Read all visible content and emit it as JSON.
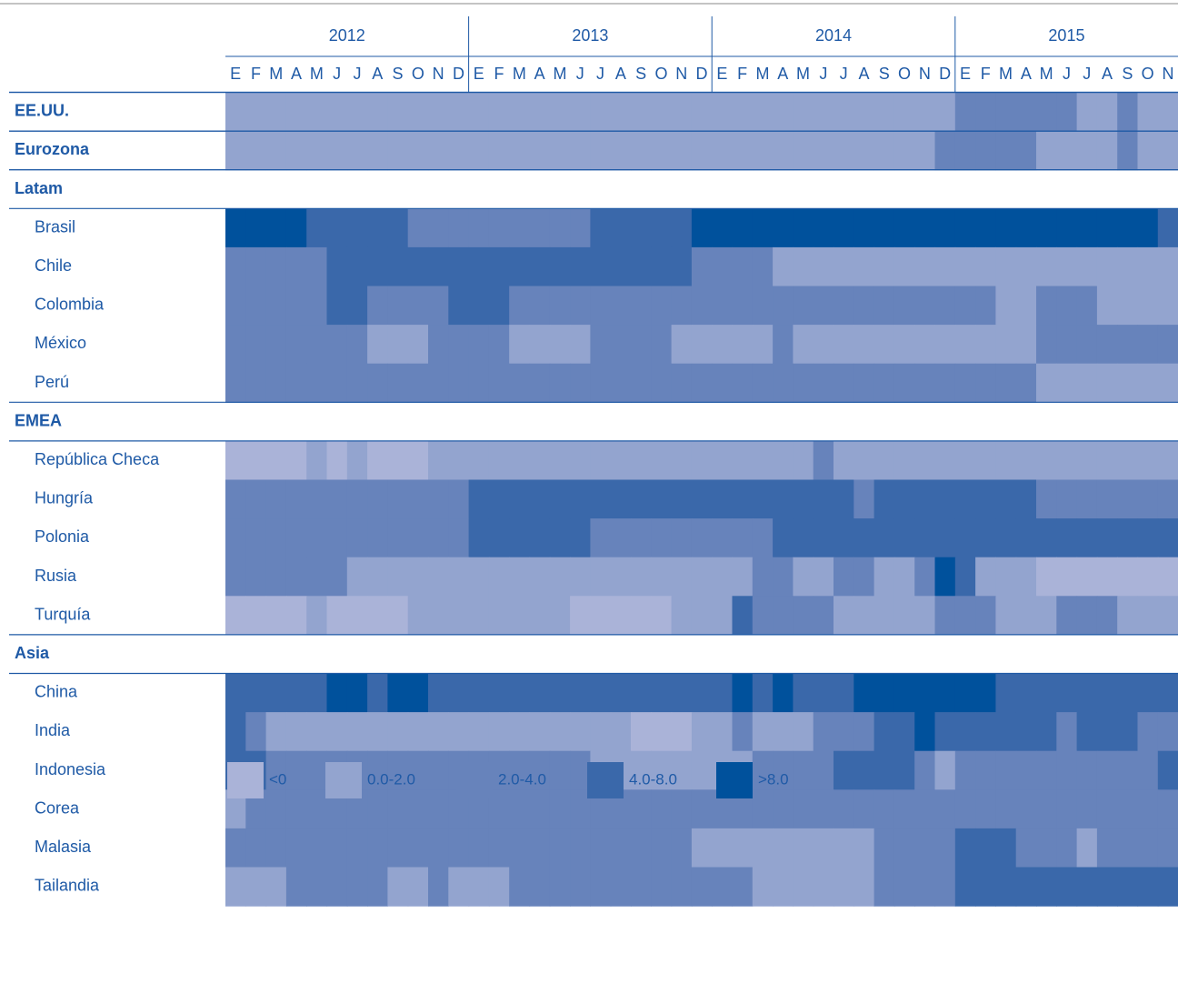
{
  "chart_data": {
    "type": "heatmap",
    "years": [
      "2012",
      "2013",
      "2014",
      "2015"
    ],
    "months": [
      "E",
      "F",
      "M",
      "A",
      "M",
      "J",
      "J",
      "A",
      "S",
      "O",
      "N",
      "D",
      "E",
      "F",
      "M",
      "A",
      "M",
      "J",
      "J",
      "A",
      "S",
      "O",
      "N",
      "D",
      "E",
      "F",
      "M",
      "A",
      "M",
      "J",
      "J",
      "A",
      "S",
      "O",
      "N",
      "D",
      "E",
      "F",
      "M",
      "A",
      "M",
      "J",
      "J",
      "A",
      "S",
      "O",
      "N"
    ],
    "legend": [
      {
        "label": "<0",
        "color": "#aab3d8"
      },
      {
        "label": "0.0-2.0",
        "color": "#93a4cf"
      },
      {
        "label": "2.0-4.0",
        "color": "#6783bb"
      },
      {
        "label": "4.0-8.0",
        "color": "#3a68aa"
      },
      {
        "label": ">8.0",
        "color": "#00519c"
      }
    ],
    "rows": [
      {
        "label": "EE.UU.",
        "bold": true,
        "values": [
          1,
          1,
          1,
          1,
          1,
          1,
          1,
          1,
          1,
          1,
          1,
          1,
          1,
          1,
          1,
          1,
          1,
          1,
          1,
          1,
          1,
          1,
          1,
          1,
          1,
          1,
          1,
          1,
          1,
          1,
          1,
          1,
          1,
          1,
          1,
          1,
          2,
          2,
          2,
          2,
          2,
          2,
          1,
          1,
          2,
          1,
          1
        ]
      },
      {
        "label": "Eurozona",
        "bold": true,
        "values": [
          1,
          1,
          1,
          1,
          1,
          1,
          1,
          1,
          1,
          1,
          1,
          1,
          1,
          1,
          1,
          1,
          1,
          1,
          1,
          1,
          1,
          1,
          1,
          1,
          1,
          1,
          1,
          1,
          1,
          1,
          1,
          1,
          1,
          1,
          1,
          2,
          2,
          2,
          2,
          2,
          1,
          1,
          1,
          1,
          2,
          1,
          1
        ]
      },
      {
        "label": "Latam",
        "bold": true
      },
      {
        "label": "Brasil",
        "values": [
          4,
          4,
          4,
          4,
          3,
          3,
          3,
          3,
          3,
          2,
          2,
          2,
          2,
          2,
          2,
          2,
          2,
          2,
          3,
          3,
          3,
          3,
          3,
          4,
          4,
          4,
          4,
          4,
          4,
          4,
          4,
          4,
          4,
          4,
          4,
          4,
          4,
          4,
          4,
          4,
          4,
          4,
          4,
          4,
          4,
          4,
          3
        ]
      },
      {
        "label": "Chile",
        "values": [
          2,
          2,
          2,
          2,
          2,
          3,
          3,
          3,
          3,
          3,
          3,
          3,
          3,
          3,
          3,
          3,
          3,
          3,
          3,
          3,
          3,
          3,
          3,
          2,
          2,
          2,
          2,
          1,
          1,
          1,
          1,
          1,
          1,
          1,
          1,
          1,
          1,
          1,
          1,
          1,
          1,
          1,
          1,
          1,
          1,
          1,
          1
        ]
      },
      {
        "label": "Colombia",
        "values": [
          2,
          2,
          2,
          2,
          2,
          3,
          3,
          2,
          2,
          2,
          2,
          3,
          3,
          3,
          2,
          2,
          2,
          2,
          2,
          2,
          2,
          2,
          2,
          2,
          2,
          2,
          2,
          2,
          2,
          2,
          2,
          2,
          2,
          2,
          2,
          2,
          2,
          2,
          1,
          1,
          2,
          2,
          2,
          1,
          1,
          1,
          1
        ]
      },
      {
        "label": "México",
        "values": [
          2,
          2,
          2,
          2,
          2,
          2,
          2,
          1,
          1,
          1,
          2,
          2,
          2,
          2,
          1,
          1,
          1,
          1,
          2,
          2,
          2,
          2,
          1,
          1,
          1,
          1,
          1,
          2,
          1,
          1,
          1,
          1,
          1,
          1,
          1,
          1,
          1,
          1,
          1,
          1,
          2,
          2,
          2,
          2,
          2,
          2,
          2
        ]
      },
      {
        "label": "Perú",
        "values": [
          2,
          2,
          2,
          2,
          2,
          2,
          2,
          2,
          2,
          2,
          2,
          2,
          2,
          2,
          2,
          2,
          2,
          2,
          2,
          2,
          2,
          2,
          2,
          2,
          2,
          2,
          2,
          2,
          2,
          2,
          2,
          2,
          2,
          2,
          2,
          2,
          2,
          2,
          2,
          2,
          1,
          1,
          1,
          1,
          1,
          1,
          1
        ]
      },
      {
        "label": "EMEA",
        "bold": true
      },
      {
        "label": "República Checa",
        "values": [
          0,
          0,
          0,
          0,
          1,
          0,
          1,
          0,
          0,
          0,
          1,
          1,
          1,
          1,
          1,
          1,
          1,
          1,
          1,
          1,
          1,
          1,
          1,
          1,
          1,
          1,
          1,
          1,
          1,
          2,
          1,
          1,
          1,
          1,
          1,
          1,
          1,
          1,
          1,
          1,
          1,
          1,
          1,
          1,
          1,
          1,
          1
        ]
      },
      {
        "label": "Hungría",
        "values": [
          2,
          2,
          2,
          2,
          2,
          2,
          2,
          2,
          2,
          2,
          2,
          2,
          3,
          3,
          3,
          3,
          3,
          3,
          3,
          3,
          3,
          3,
          3,
          3,
          3,
          3,
          3,
          3,
          3,
          3,
          3,
          2,
          3,
          3,
          3,
          3,
          3,
          3,
          3,
          3,
          2,
          2,
          2,
          2,
          2,
          2,
          2
        ]
      },
      {
        "label": "Polonia",
        "values": [
          2,
          2,
          2,
          2,
          2,
          2,
          2,
          2,
          2,
          2,
          2,
          2,
          3,
          3,
          3,
          3,
          3,
          3,
          2,
          2,
          2,
          2,
          2,
          2,
          2,
          2,
          2,
          3,
          3,
          3,
          3,
          3,
          3,
          3,
          3,
          3,
          3,
          3,
          3,
          3,
          3,
          3,
          3,
          3,
          3,
          3,
          3
        ]
      },
      {
        "label": "Rusia",
        "values": [
          2,
          2,
          2,
          2,
          2,
          2,
          1,
          1,
          1,
          1,
          1,
          1,
          1,
          1,
          1,
          1,
          1,
          1,
          1,
          1,
          1,
          1,
          1,
          1,
          1,
          1,
          2,
          2,
          1,
          1,
          2,
          2,
          1,
          1,
          2,
          4,
          3,
          1,
          1,
          1,
          0,
          0,
          0,
          0,
          0,
          0,
          0
        ]
      },
      {
        "label": "Turquía",
        "values": [
          0,
          0,
          0,
          0,
          1,
          0,
          0,
          0,
          0,
          1,
          1,
          1,
          1,
          1,
          1,
          1,
          1,
          0,
          0,
          0,
          0,
          0,
          1,
          1,
          1,
          3,
          2,
          2,
          2,
          2,
          1,
          1,
          1,
          1,
          1,
          2,
          2,
          2,
          1,
          1,
          1,
          2,
          2,
          2,
          1,
          1,
          1
        ]
      },
      {
        "label": "Asia",
        "bold": true
      },
      {
        "label": "China",
        "values": [
          3,
          3,
          3,
          3,
          3,
          4,
          4,
          3,
          4,
          4,
          3,
          3,
          3,
          3,
          3,
          3,
          3,
          3,
          3,
          3,
          3,
          3,
          3,
          3,
          3,
          4,
          3,
          4,
          3,
          3,
          3,
          4,
          4,
          4,
          4,
          4,
          4,
          4,
          3,
          3,
          3,
          3,
          3,
          3,
          3,
          3,
          3
        ]
      },
      {
        "label": "India",
        "values": [
          3,
          2,
          1,
          1,
          1,
          1,
          1,
          1,
          1,
          1,
          1,
          1,
          1,
          1,
          1,
          1,
          1,
          1,
          1,
          1,
          0,
          0,
          0,
          1,
          1,
          2,
          1,
          1,
          1,
          2,
          2,
          2,
          3,
          3,
          4,
          3,
          3,
          3,
          3,
          3,
          3,
          2,
          3,
          3,
          3,
          2,
          2
        ]
      },
      {
        "label": "Indonesia",
        "values": [
          3,
          3,
          2,
          2,
          2,
          2,
          2,
          2,
          2,
          2,
          2,
          2,
          2,
          2,
          2,
          2,
          2,
          2,
          1,
          1,
          1,
          1,
          1,
          1,
          1,
          1,
          2,
          2,
          2,
          2,
          3,
          3,
          3,
          3,
          2,
          1,
          2,
          2,
          2,
          2,
          2,
          2,
          2,
          2,
          2,
          2,
          3
        ]
      },
      {
        "label": "Corea",
        "values": [
          1,
          2,
          2,
          2,
          2,
          2,
          2,
          2,
          2,
          2,
          2,
          2,
          2,
          2,
          2,
          2,
          2,
          2,
          2,
          2,
          2,
          2,
          2,
          2,
          2,
          2,
          2,
          2,
          2,
          2,
          2,
          2,
          2,
          2,
          2,
          2,
          2,
          2,
          2,
          2,
          2,
          2,
          2,
          2,
          2,
          2,
          2
        ]
      },
      {
        "label": "Malasia",
        "values": [
          2,
          2,
          2,
          2,
          2,
          2,
          2,
          2,
          2,
          2,
          2,
          2,
          2,
          2,
          2,
          2,
          2,
          2,
          2,
          2,
          2,
          2,
          2,
          1,
          1,
          1,
          1,
          1,
          1,
          1,
          1,
          1,
          2,
          2,
          2,
          2,
          3,
          3,
          3,
          2,
          2,
          2,
          1,
          2,
          2,
          2,
          2
        ]
      },
      {
        "label": "Tailandia",
        "values": [
          1,
          1,
          1,
          2,
          2,
          2,
          2,
          2,
          1,
          1,
          2,
          1,
          1,
          1,
          2,
          2,
          2,
          2,
          2,
          2,
          2,
          2,
          2,
          2,
          2,
          2,
          1,
          1,
          1,
          1,
          1,
          1,
          2,
          2,
          2,
          2,
          3,
          3,
          3,
          3,
          3,
          3,
          3,
          3,
          3,
          3,
          3
        ]
      }
    ]
  }
}
